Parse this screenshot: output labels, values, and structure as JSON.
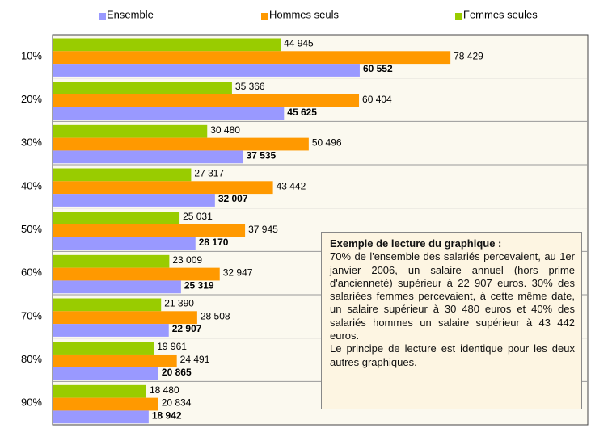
{
  "chart_data": {
    "type": "hbar",
    "categories": [
      "10%",
      "20%",
      "30%",
      "40%",
      "50%",
      "60%",
      "70%",
      "80%",
      "90%"
    ],
    "series": [
      {
        "name": "Ensemble",
        "color": "#9999ff",
        "values": [
          60552,
          45625,
          37535,
          32007,
          28170,
          25319,
          22907,
          20865,
          18942
        ],
        "value_labels": [
          "60 552",
          "45 625",
          "37 535",
          "32 007",
          "28 170",
          "25 319",
          "22 907",
          "20 865",
          "18 942"
        ]
      },
      {
        "name": "Hommes seuls",
        "color": "#ff9900",
        "values": [
          78429,
          60404,
          50496,
          43442,
          37945,
          32947,
          28508,
          24491,
          20834
        ],
        "value_labels": [
          "78 429",
          "60 404",
          "50 496",
          "43 442",
          "37 945",
          "32 947",
          "28 508",
          "24 491",
          "20 834"
        ]
      },
      {
        "name": "Femmes seules",
        "color": "#99cc00",
        "values": [
          44945,
          35366,
          30480,
          27317,
          25031,
          23009,
          21390,
          19961,
          18480
        ],
        "value_labels": [
          "44 945",
          "35 366",
          "30 480",
          "27 317",
          "25 031",
          "23 009",
          "21 390",
          "19 961",
          "18 480"
        ]
      }
    ],
    "xlim": [
      0,
      105500
    ],
    "annotation": {
      "title": "Exemple de lecture du graphique :",
      "paragraphs": [
        "70% de l'ensemble des salariés percevaient, au 1er janvier 2006, un salaire annuel (hors prime d'ancienneté) supérieur à 22 907 euros. 30% des salariées femmes percevaient, à cette même date, un salaire supérieur à 30 480 euros et 40% des salariés hommes un salaire supérieur à 43 442 euros.",
        "Le principe de lecture est identique pour les deux autres graphiques."
      ]
    }
  }
}
